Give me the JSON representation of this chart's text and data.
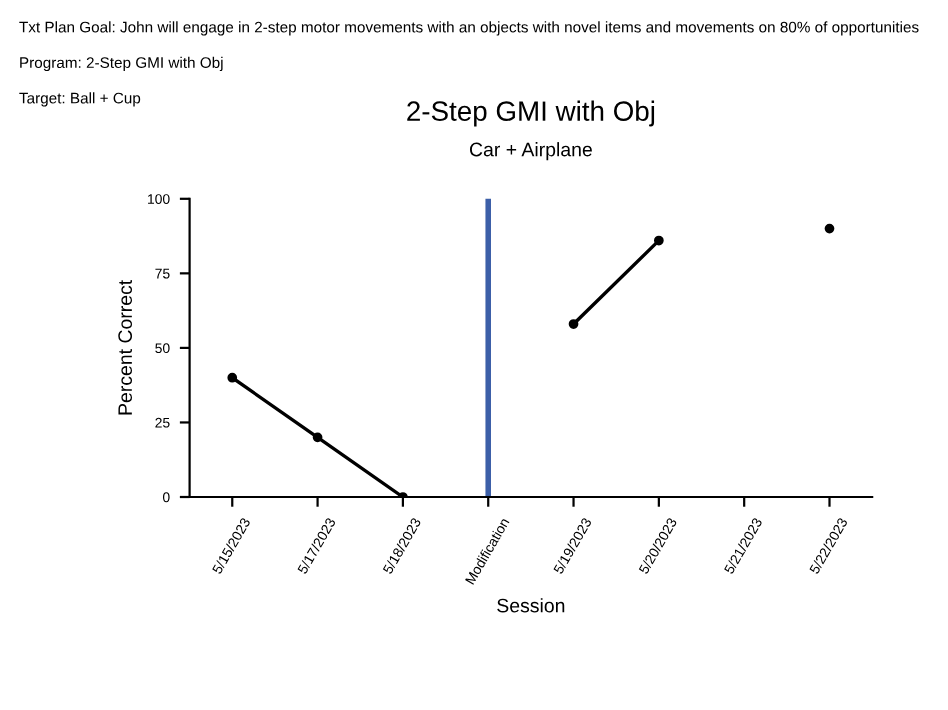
{
  "chart_data": {
    "type": "line",
    "title": "2-Step GMI with Obj",
    "subtitle": "Car + Airplane",
    "xlabel": "Session",
    "ylabel": "Percent Correct",
    "categories": [
      "5/15/2023",
      "5/17/2023",
      "5/18/2023",
      "Modification",
      "5/19/2023",
      "5/20/2023",
      "5/21/2023",
      "5/22/2023"
    ],
    "series": [
      {
        "color": "#000000",
        "values": [
          40,
          20,
          0,
          null,
          58,
          86,
          null,
          90
        ]
      }
    ],
    "ylim": [
      0,
      100
    ],
    "yticks": [
      0,
      25,
      50,
      75,
      100
    ],
    "grid": false,
    "legend": false,
    "marker": "circle",
    "line_style": "solid",
    "ref_lines": [
      {
        "axis": "x",
        "value": "Modification",
        "color": "#3c5fa8",
        "line_style": "solid"
      }
    ],
    "annotations": [
      "Txt Plan Goal: John will engage in 2-step motor movements with an objects with novel items and movements on 80% of opportunities",
      "Program: 2-Step GMI with Obj",
      "Target: Ball + Cup"
    ]
  }
}
